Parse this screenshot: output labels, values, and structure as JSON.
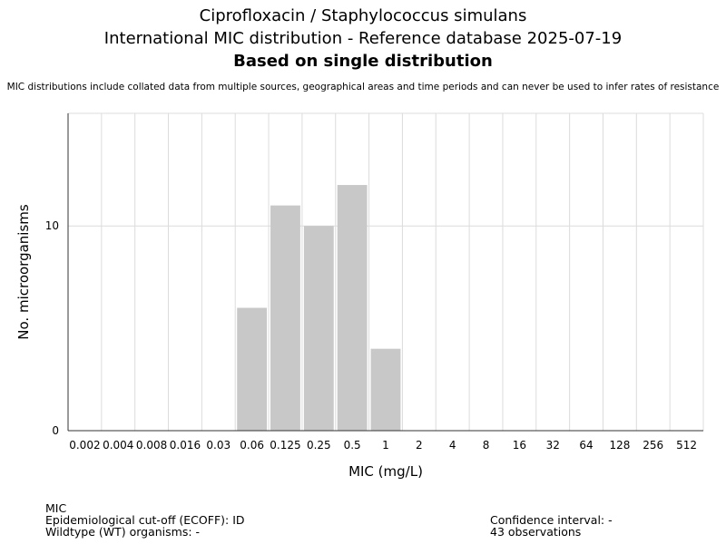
{
  "header": {
    "line1": "Ciprofloxacin / Staphylococcus simulans",
    "line2": "International MIC distribution - Reference database 2025-07-19",
    "line3": "Based on single distribution",
    "note": "MIC distributions include collated data from multiple sources, geographical areas and time periods and can never be used to infer rates of resistance"
  },
  "chart_data": {
    "type": "bar",
    "categories": [
      "0.002",
      "0.004",
      "0.008",
      "0.016",
      "0.03",
      "0.06",
      "0.125",
      "0.25",
      "0.5",
      "1",
      "2",
      "4",
      "8",
      "16",
      "32",
      "64",
      "128",
      "256",
      "512"
    ],
    "values": [
      0,
      0,
      0,
      0,
      0,
      6,
      11,
      10,
      12,
      4,
      0,
      0,
      0,
      0,
      0,
      0,
      0,
      0,
      0
    ],
    "xlabel": "MIC (mg/L)",
    "ylabel": "No. microorganisms",
    "ylim": [
      0,
      15.5
    ],
    "yticks": [
      0,
      10
    ],
    "grid": true,
    "bar_color": "#c8c8c8"
  },
  "footer": {
    "left": [
      "MIC",
      "Epidemiological cut-off (ECOFF): ID",
      "Wildtype (WT) organisms:  -"
    ],
    "right": [
      "Confidence interval: -",
      "43 observations"
    ]
  }
}
